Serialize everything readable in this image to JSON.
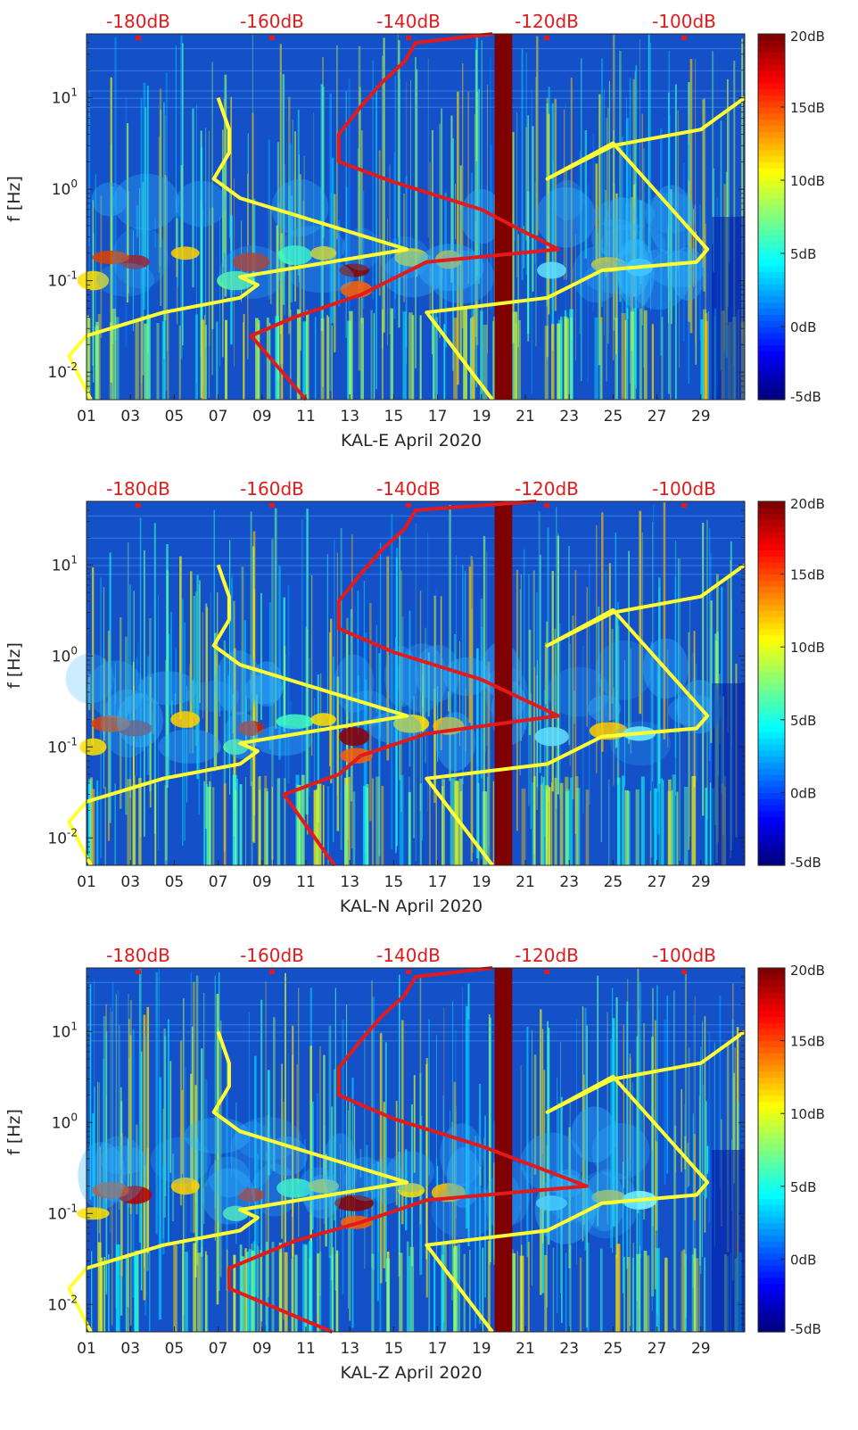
{
  "colorbar": {
    "ticks": [
      "20dB",
      "15dB",
      "10dB",
      "5dB",
      "0dB",
      "-5dB"
    ],
    "values": [
      20,
      15,
      10,
      5,
      0,
      -5
    ],
    "colormap": "jet"
  },
  "colors": {
    "yellow_curve": "#ffff33",
    "red_curve": "#e31a1c",
    "gap_band": "#7f0000",
    "background": "#1450c8"
  },
  "top_axis_ticks": [
    "-180dB",
    "-160dB",
    "-140dB",
    "-120dB",
    "-100dB"
  ],
  "x_ticks": [
    "01",
    "03",
    "05",
    "07",
    "09",
    "11",
    "13",
    "15",
    "17",
    "19",
    "21",
    "23",
    "25",
    "27",
    "29"
  ],
  "y_ticks": [
    "10-2",
    "10-1",
    "100",
    "101"
  ],
  "y_label": "f [Hz]",
  "chart_data": [
    {
      "type": "heatmap",
      "title": "KAL-E April 2020",
      "xlabel": "KAL-E April 2020",
      "ylabel": "f [Hz]",
      "x_range_days": [
        1,
        31
      ],
      "y_range_hz": [
        0.005,
        50
      ],
      "y_scale": "log",
      "color_range_db": [
        -5,
        20
      ],
      "top_axis": {
        "label_values_db": [
          -180,
          -160,
          -140,
          -120,
          -100
        ]
      },
      "data_gap_days": [
        19.6,
        20.4
      ],
      "series": [
        {
          "color": "yellow",
          "points_day_hz": [
            [
              1.2,
              0.005
            ],
            [
              0.2,
              0.015
            ],
            [
              1.0,
              0.025
            ],
            [
              4.5,
              0.045
            ],
            [
              8.0,
              0.065
            ],
            [
              8.8,
              0.09
            ],
            [
              8.0,
              0.11
            ],
            [
              15.6,
              0.22
            ],
            [
              8.0,
              0.8
            ],
            [
              6.8,
              1.3
            ],
            [
              7.5,
              2.5
            ],
            [
              7.5,
              4.5
            ],
            [
              7.0,
              10
            ]
          ]
        },
        {
          "color": "yellow",
          "points_day_hz": [
            [
              19.5,
              0.005
            ],
            [
              16.5,
              0.045
            ],
            [
              22.0,
              0.065
            ],
            [
              24.5,
              0.13
            ],
            [
              28.8,
              0.16
            ],
            [
              29.3,
              0.22
            ],
            [
              25.0,
              3.2
            ],
            [
              22.0,
              1.3
            ],
            [
              25.0,
              3.0
            ],
            [
              29.0,
              4.5
            ],
            [
              31.0,
              10
            ]
          ]
        },
        {
          "color": "red",
          "points_day_hz": [
            [
              11.0,
              0.005
            ],
            [
              8.5,
              0.025
            ],
            [
              10.5,
              0.04
            ],
            [
              13.5,
              0.07
            ],
            [
              16.5,
              0.16
            ],
            [
              22.5,
              0.22
            ],
            [
              19.0,
              0.6
            ],
            [
              15.0,
              1.2
            ],
            [
              12.5,
              2.0
            ],
            [
              12.5,
              4.0
            ],
            [
              13.5,
              8.0
            ],
            [
              14.5,
              15.0
            ],
            [
              15.5,
              25.0
            ],
            [
              16.0,
              40.0
            ],
            [
              19.5,
              50.0
            ]
          ]
        }
      ]
    },
    {
      "type": "heatmap",
      "title": "KAL-N April 2020",
      "xlabel": "KAL-N April 2020",
      "ylabel": "f [Hz]",
      "x_range_days": [
        1,
        31
      ],
      "y_range_hz": [
        0.005,
        50
      ],
      "y_scale": "log",
      "color_range_db": [
        -5,
        20
      ],
      "top_axis": {
        "label_values_db": [
          -180,
          -160,
          -140,
          -120,
          -100
        ]
      },
      "data_gap_days": [
        19.6,
        20.4
      ],
      "series": [
        {
          "color": "yellow",
          "points_day_hz": [
            [
              1.2,
              0.005
            ],
            [
              0.2,
              0.015
            ],
            [
              1.0,
              0.025
            ],
            [
              4.5,
              0.045
            ],
            [
              8.0,
              0.065
            ],
            [
              8.8,
              0.09
            ],
            [
              8.0,
              0.11
            ],
            [
              15.6,
              0.22
            ],
            [
              8.0,
              0.8
            ],
            [
              6.8,
              1.3
            ],
            [
              7.5,
              2.5
            ],
            [
              7.5,
              4.5
            ],
            [
              7.0,
              10
            ]
          ]
        },
        {
          "color": "yellow",
          "points_day_hz": [
            [
              19.5,
              0.005
            ],
            [
              16.5,
              0.045
            ],
            [
              22.0,
              0.065
            ],
            [
              24.5,
              0.13
            ],
            [
              28.8,
              0.16
            ],
            [
              29.3,
              0.22
            ],
            [
              25.0,
              3.2
            ],
            [
              22.0,
              1.3
            ],
            [
              25.0,
              3.0
            ],
            [
              29.0,
              4.5
            ],
            [
              31.0,
              10
            ]
          ]
        },
        {
          "color": "red",
          "points_day_hz": [
            [
              12.3,
              0.005
            ],
            [
              10.0,
              0.03
            ],
            [
              12.5,
              0.05
            ],
            [
              13.5,
              0.08
            ],
            [
              16.5,
              0.14
            ],
            [
              22.5,
              0.22
            ],
            [
              19.0,
              0.55
            ],
            [
              15.0,
              1.1
            ],
            [
              12.5,
              2.0
            ],
            [
              12.5,
              4.0
            ],
            [
              13.5,
              8.0
            ],
            [
              14.5,
              15.0
            ],
            [
              15.5,
              25.0
            ],
            [
              16.0,
              40.0
            ],
            [
              21.5,
              50.0
            ]
          ]
        }
      ]
    },
    {
      "type": "heatmap",
      "title": "KAL-Z April 2020",
      "xlabel": "KAL-Z April 2020",
      "ylabel": "f [Hz]",
      "x_range_days": [
        1,
        31
      ],
      "y_range_hz": [
        0.005,
        50
      ],
      "y_scale": "log",
      "color_range_db": [
        -5,
        20
      ],
      "top_axis": {
        "label_values_db": [
          -180,
          -160,
          -140,
          -120,
          -100
        ]
      },
      "data_gap_days": [
        19.6,
        20.4
      ],
      "series": [
        {
          "color": "yellow",
          "points_day_hz": [
            [
              1.2,
              0.005
            ],
            [
              0.2,
              0.015
            ],
            [
              1.0,
              0.025
            ],
            [
              4.5,
              0.045
            ],
            [
              8.0,
              0.065
            ],
            [
              8.8,
              0.09
            ],
            [
              8.0,
              0.11
            ],
            [
              15.6,
              0.22
            ],
            [
              8.0,
              0.8
            ],
            [
              6.8,
              1.3
            ],
            [
              7.5,
              2.5
            ],
            [
              7.5,
              4.5
            ],
            [
              7.0,
              10
            ]
          ]
        },
        {
          "color": "yellow",
          "points_day_hz": [
            [
              19.5,
              0.005
            ],
            [
              16.5,
              0.045
            ],
            [
              22.0,
              0.065
            ],
            [
              24.5,
              0.13
            ],
            [
              28.8,
              0.16
            ],
            [
              29.3,
              0.22
            ],
            [
              25.0,
              3.2
            ],
            [
              22.0,
              1.3
            ],
            [
              25.0,
              3.0
            ],
            [
              29.0,
              4.5
            ],
            [
              31.0,
              10
            ]
          ]
        },
        {
          "color": "red",
          "points_day_hz": [
            [
              12.2,
              0.005
            ],
            [
              7.5,
              0.015
            ],
            [
              7.5,
              0.025
            ],
            [
              10.5,
              0.05
            ],
            [
              13.5,
              0.08
            ],
            [
              16.5,
              0.14
            ],
            [
              23.8,
              0.2
            ],
            [
              19.0,
              0.55
            ],
            [
              15.0,
              1.1
            ],
            [
              12.5,
              2.0
            ],
            [
              12.5,
              4.0
            ],
            [
              13.5,
              8.0
            ],
            [
              14.5,
              15.0
            ],
            [
              15.5,
              25.0
            ],
            [
              16.0,
              40.0
            ],
            [
              19.5,
              50.0
            ]
          ]
        }
      ]
    }
  ]
}
